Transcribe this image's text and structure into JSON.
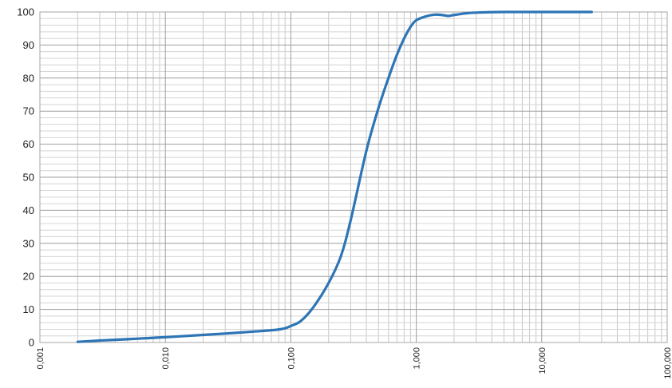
{
  "chart_data": {
    "type": "line",
    "title": "",
    "xlabel": "",
    "ylabel": "",
    "x_scale": "log",
    "xlim": [
      0.001,
      100
    ],
    "ylim": [
      0,
      100
    ],
    "grid": true,
    "legend": "none",
    "x_ticks": [
      {
        "value": 0.001,
        "label": "0,001"
      },
      {
        "value": 0.01,
        "label": "0,010"
      },
      {
        "value": 0.1,
        "label": "0,100"
      },
      {
        "value": 1,
        "label": "1,000"
      },
      {
        "value": 10,
        "label": "10,000"
      },
      {
        "value": 100,
        "label": "100,000"
      }
    ],
    "y_ticks": [
      0,
      10,
      20,
      30,
      40,
      50,
      60,
      70,
      80,
      90,
      100
    ],
    "series": [
      {
        "color": "#2e75b6",
        "x": [
          0.002,
          0.003,
          0.005,
          0.007,
          0.01,
          0.02,
          0.03,
          0.05,
          0.075,
          0.09,
          0.1,
          0.12,
          0.15,
          0.2,
          0.25,
          0.3,
          0.4,
          0.5,
          0.6,
          0.7,
          0.8,
          0.9,
          1.0,
          1.2,
          1.4,
          1.6,
          1.8,
          2.0,
          2.5,
          3.0,
          5.0,
          10.0,
          25.0
        ],
        "y": [
          0.2,
          0.6,
          1.0,
          1.3,
          1.6,
          2.3,
          2.7,
          3.3,
          3.8,
          4.3,
          5.0,
          6.5,
          10.5,
          18.0,
          26.0,
          37.0,
          58.0,
          71.0,
          80.0,
          87.0,
          92.0,
          95.5,
          97.5,
          98.7,
          99.2,
          99.1,
          98.8,
          99.1,
          99.6,
          99.8,
          100,
          100,
          100
        ]
      }
    ]
  }
}
